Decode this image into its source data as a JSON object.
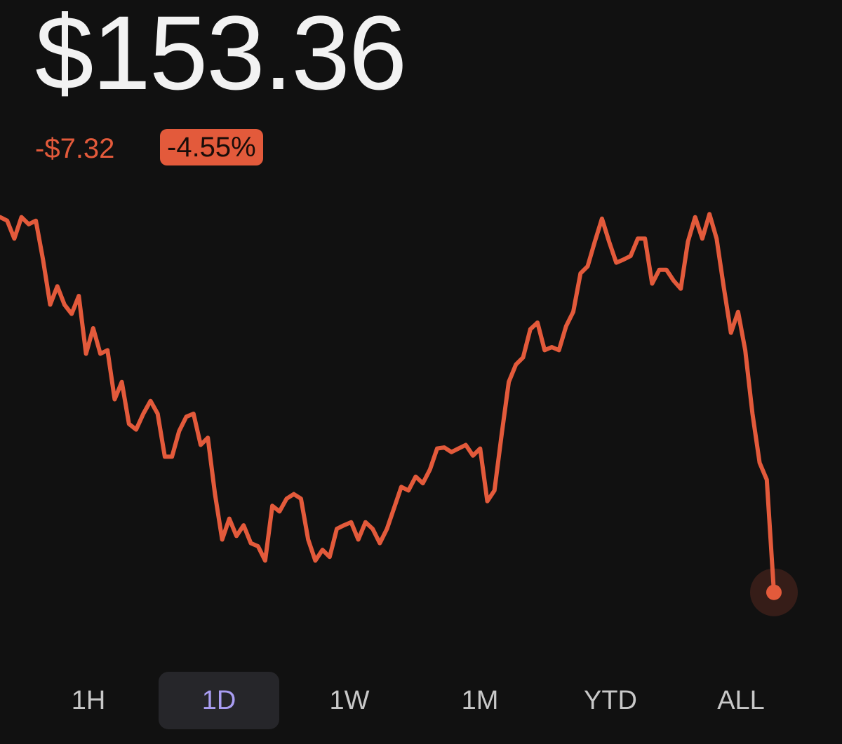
{
  "header": {
    "price": "$153.36",
    "change": "-$7.32",
    "change_percent": "-4.55%"
  },
  "chart_data": {
    "type": "line",
    "color": "#e35a3b",
    "ylim": [
      153,
      161
    ],
    "values": [
      160.69,
      160.62,
      160.27,
      160.69,
      160.55,
      160.62,
      159.86,
      158.98,
      159.34,
      158.98,
      158.8,
      159.15,
      158.02,
      158.52,
      158.02,
      158.09,
      157.13,
      157.47,
      156.65,
      156.54,
      156.85,
      157.1,
      156.85,
      156.01,
      156.01,
      156.51,
      156.79,
      156.85,
      156.24,
      156.38,
      155.28,
      154.39,
      154.8,
      154.46,
      154.67,
      154.32,
      154.26,
      153.98,
      155.05,
      154.94,
      155.19,
      155.28,
      155.19,
      154.39,
      153.98,
      154.19,
      154.05,
      154.6,
      154.67,
      154.73,
      154.39,
      154.73,
      154.6,
      154.32,
      154.6,
      155.01,
      155.42,
      155.35,
      155.62,
      155.49,
      155.76,
      156.17,
      156.19,
      156.1,
      156.17,
      156.24,
      156.03,
      156.17,
      155.14,
      155.35,
      156.44,
      157.47,
      157.81,
      157.95,
      158.5,
      158.63,
      158.09,
      158.15,
      158.09,
      158.56,
      158.84,
      159.59,
      159.73,
      160.21,
      160.66,
      160.21,
      159.8,
      159.86,
      159.93,
      160.27,
      160.27,
      159.39,
      159.66,
      159.66,
      159.45,
      159.29,
      160.21,
      160.69,
      160.27,
      160.75,
      160.27,
      159.32,
      158.43,
      158.84,
      158.09,
      156.85,
      155.89,
      155.56,
      153.36
    ]
  },
  "tabs": {
    "items": [
      "1H",
      "1D",
      "1W",
      "1M",
      "YTD",
      "ALL"
    ],
    "selected": 1
  }
}
